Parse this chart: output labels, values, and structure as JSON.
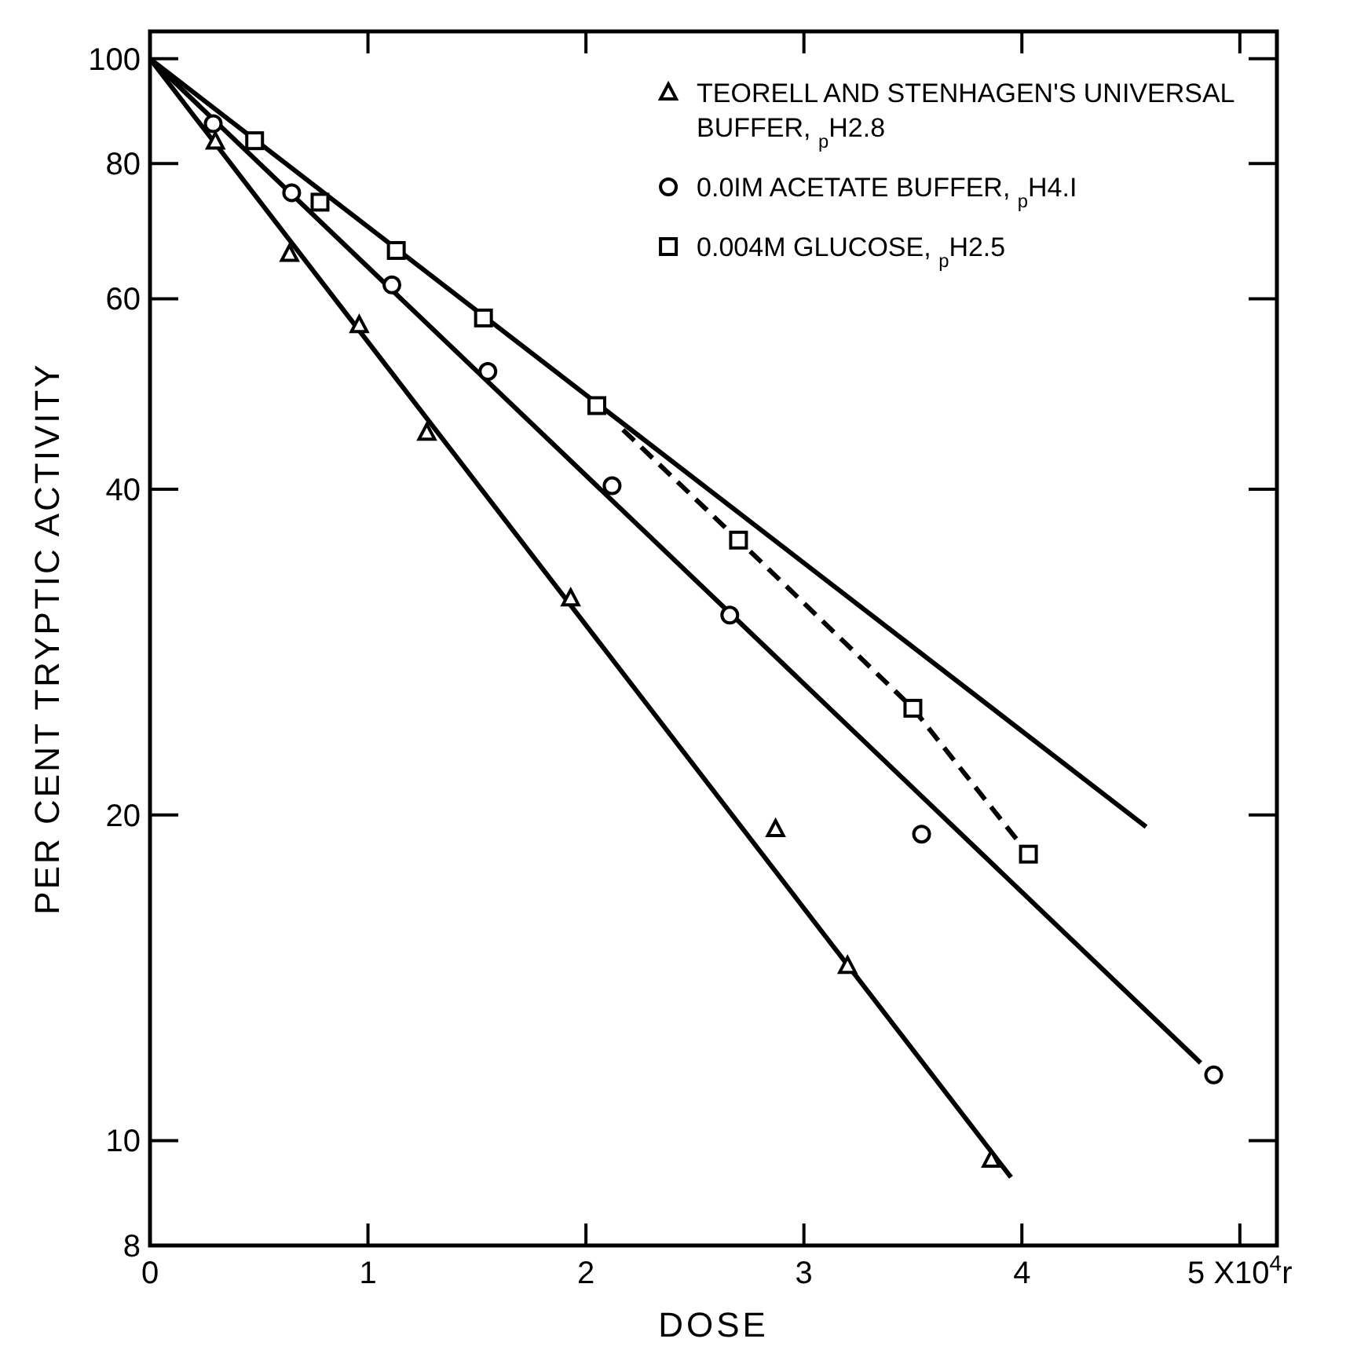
{
  "chart_data": {
    "type": "scatter",
    "xlabel": "DOSE",
    "ylabel": "PER CENT TRYPTIC ACTIVITY",
    "log": "y",
    "xlim": [
      0,
      5.17
    ],
    "ylim": [
      8,
      106
    ],
    "xticks": [
      0,
      1,
      2,
      3,
      4,
      {
        "value": 5,
        "label": "5 X10$^{4}$r"
      }
    ],
    "yticks": [
      8,
      10,
      20,
      40,
      60,
      80,
      100
    ],
    "legend": "top right",
    "series": [
      {
        "name": "TEORELL AND STENHAGEN'S UNIVERSAL BUFFER, $_{p}$H2.8",
        "marker": "triangle",
        "color": "#000000",
        "x": [
          0.3,
          0.64,
          0.96,
          1.27,
          1.93,
          2.87,
          3.2,
          3.86
        ],
        "values": [
          83.8,
          66.0,
          56.7,
          45.1,
          31.7,
          19.4,
          14.5,
          9.6
        ]
      },
      {
        "name": "0.0IM ACETATE BUFFER, $_{p}$H4.I",
        "marker": "circle",
        "color": "#000000",
        "x": [
          0.29,
          0.65,
          1.11,
          1.55,
          2.12,
          2.66,
          3.54,
          4.88
        ],
        "values": [
          87.1,
          75.2,
          61.8,
          51.4,
          40.3,
          30.6,
          19.2,
          11.5
        ]
      },
      {
        "name": "0.004M GLUCOSE, $_{p}$H2.5",
        "marker": "square",
        "color": "#000000",
        "x": [
          0.48,
          0.78,
          1.13,
          1.53,
          2.05,
          2.7,
          3.5,
          4.03
        ],
        "values": [
          84.0,
          73.7,
          66.5,
          57.6,
          47.8,
          35.9,
          25.1,
          18.4
        ]
      },
      {
        "type": "line",
        "marker": "none",
        "line_style": "solid",
        "color": "#000000",
        "x": [
          0,
          3.95
        ],
        "values": [
          100,
          9.25
        ]
      },
      {
        "type": "line",
        "marker": "none",
        "line_style": "solid",
        "color": "#000000",
        "x": [
          0,
          4.82
        ],
        "values": [
          100,
          11.8
        ]
      },
      {
        "type": "line",
        "marker": "none",
        "line_style": "solid",
        "color": "#000000",
        "x": [
          0,
          4.57
        ],
        "values": [
          100,
          19.5
        ]
      },
      {
        "type": "line",
        "marker": "none",
        "line_style": "dashed",
        "color": "#000000",
        "x": [
          2.17,
          2.7,
          3.5,
          4.03
        ],
        "values": [
          45.4,
          35.9,
          25.1,
          18.4
        ]
      }
    ]
  }
}
